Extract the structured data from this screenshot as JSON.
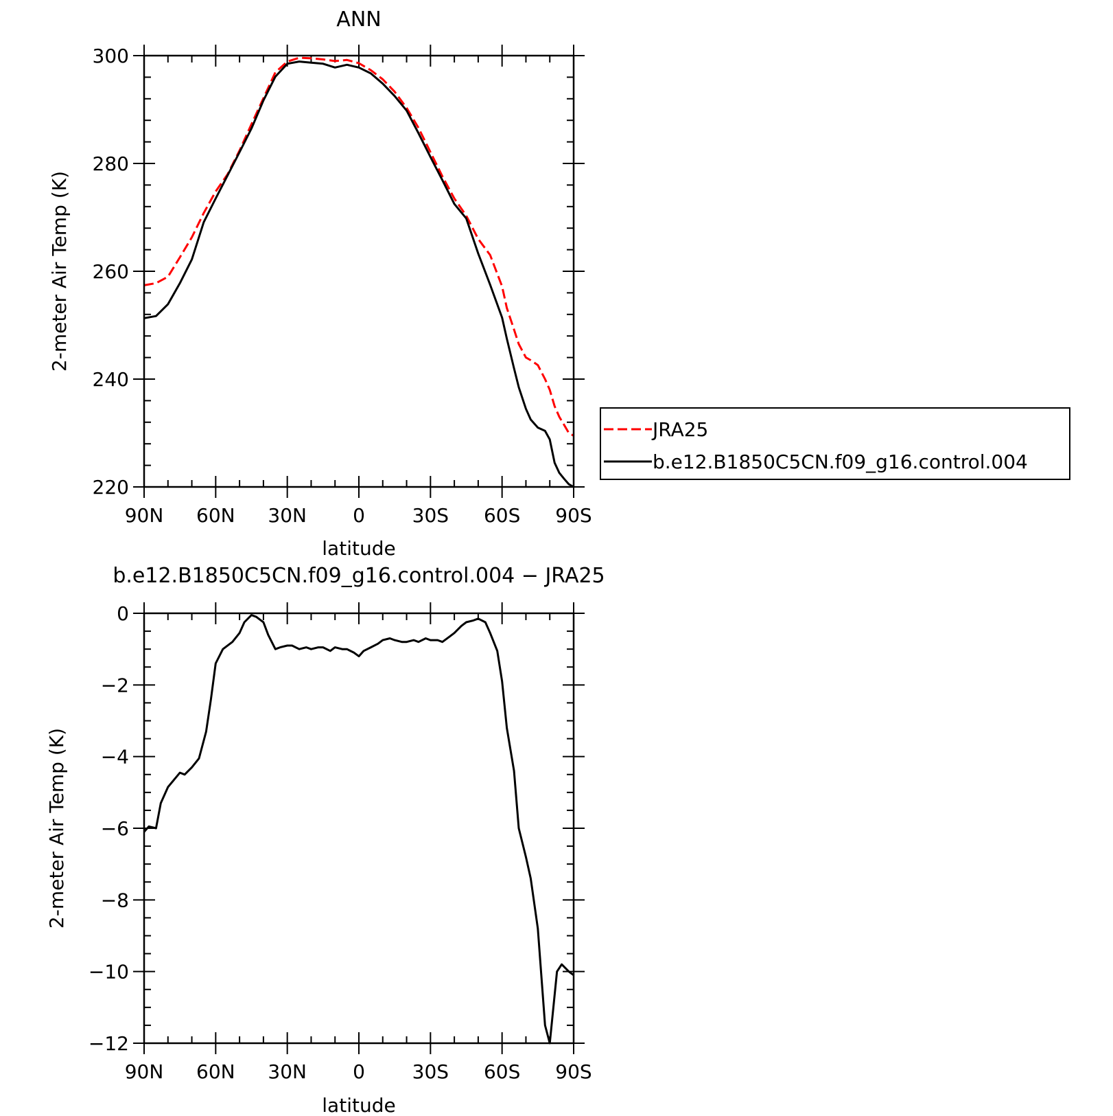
{
  "chart_data": [
    {
      "type": "line",
      "title": "ANN",
      "xlabel": "latitude",
      "ylabel": "2-meter Air Temp (K)",
      "xlim": [
        90,
        -90
      ],
      "ylim": [
        220,
        300
      ],
      "x_ticks": [
        90,
        60,
        30,
        0,
        -30,
        -60,
        -90
      ],
      "x_tick_labels": [
        "90N",
        "60N",
        "30N",
        "0",
        "30S",
        "60S",
        "90S"
      ],
      "y_ticks": [
        220,
        240,
        260,
        280,
        300
      ],
      "y_tick_labels": [
        "220",
        "240",
        "260",
        "280",
        "300"
      ],
      "grid": false,
      "legend_position": "right",
      "series": [
        {
          "name": "JRA25",
          "color": "#ff0000",
          "dash": "dashed",
          "x": [
            90,
            85,
            80,
            75,
            70,
            65,
            60,
            55,
            50,
            45,
            40,
            35,
            30,
            25,
            20,
            15,
            10,
            5,
            0,
            -5,
            -10,
            -15,
            -20,
            -25,
            -30,
            -35,
            -40,
            -45,
            -50,
            -55,
            -60,
            -62,
            -65,
            -67,
            -70,
            -72,
            -75,
            -78,
            -80,
            -82,
            -84,
            -86,
            -88,
            -90
          ],
          "values": [
            257.4,
            257.8,
            259.0,
            262.6,
            266.3,
            270.8,
            274.8,
            278.0,
            282.4,
            287.3,
            292.1,
            296.9,
            298.9,
            299.6,
            299.5,
            299.3,
            299.0,
            299.2,
            298.6,
            297.3,
            295.6,
            293.3,
            290.3,
            286.6,
            282.1,
            277.6,
            273.5,
            270.3,
            266.0,
            263.0,
            257.2,
            253.2,
            249.2,
            246.5,
            244.0,
            243.5,
            242.6,
            240.0,
            238.0,
            235.0,
            233.0,
            231.5,
            230.0,
            229.5
          ]
        },
        {
          "name": "b.e12.B1850C5CN.f09_g16.control.004",
          "color": "#000000",
          "dash": "solid",
          "x": [
            90,
            85,
            80,
            75,
            70,
            65,
            60,
            55,
            50,
            45,
            40,
            35,
            30,
            25,
            20,
            15,
            10,
            5,
            0,
            -5,
            -10,
            -15,
            -20,
            -25,
            -30,
            -35,
            -40,
            -45,
            -50,
            -55,
            -60,
            -62,
            -65,
            -67,
            -70,
            -72,
            -75,
            -78,
            -80,
            -82,
            -84,
            -86,
            -88,
            -90
          ],
          "values": [
            251.3,
            251.7,
            253.9,
            257.8,
            262.2,
            269.1,
            273.5,
            277.8,
            282.1,
            286.5,
            291.7,
            296.1,
            298.5,
            298.9,
            298.7,
            298.5,
            297.8,
            298.3,
            297.8,
            296.7,
            294.8,
            292.5,
            289.8,
            285.6,
            281.2,
            276.9,
            272.5,
            269.8,
            263.3,
            257.5,
            251.4,
            247.5,
            242.0,
            238.5,
            234.5,
            232.5,
            231.0,
            230.4,
            228.8,
            224.5,
            222.6,
            221.5,
            220.5,
            220.0
          ]
        }
      ]
    },
    {
      "type": "line",
      "title": "b.e12.B1850C5CN.f09_g16.control.004 − JRA25",
      "xlabel": "latitude",
      "ylabel": "2-meter Air Temp (K)",
      "xlim": [
        90,
        -90
      ],
      "ylim": [
        -12,
        0
      ],
      "x_ticks": [
        90,
        60,
        30,
        0,
        -30,
        -60,
        -90
      ],
      "x_tick_labels": [
        "90N",
        "60N",
        "30N",
        "0",
        "30S",
        "60S",
        "90S"
      ],
      "y_ticks": [
        0,
        -2,
        -4,
        -6,
        -8,
        -10,
        -12
      ],
      "y_tick_labels": [
        "0",
        "−2",
        "−4",
        "−6",
        "−8",
        "−10",
        "−12"
      ],
      "grid": false,
      "series": [
        {
          "color": "#000000",
          "dash": "solid",
          "x": [
            90,
            88,
            85,
            83,
            80,
            75,
            73,
            70,
            67,
            64,
            62,
            60,
            57,
            53,
            50,
            48,
            45,
            43,
            40,
            38,
            35,
            33,
            30,
            28,
            25,
            22,
            20,
            17,
            15,
            12,
            10,
            7,
            5,
            2,
            0,
            -2,
            -5,
            -8,
            -10,
            -13,
            -15,
            -18,
            -20,
            -23,
            -25,
            -28,
            -30,
            -33,
            -35,
            -38,
            -40,
            -43,
            -45,
            -48,
            -50,
            -53,
            -55,
            -58,
            -60,
            -62,
            -65,
            -67,
            -70,
            -72,
            -75,
            -78,
            -80,
            -83,
            -85,
            -88,
            -90
          ],
          "values": [
            -6.1,
            -5.95,
            -6.0,
            -5.3,
            -4.85,
            -4.45,
            -4.5,
            -4.3,
            -4.05,
            -3.3,
            -2.4,
            -1.4,
            -1.0,
            -0.8,
            -0.55,
            -0.25,
            -0.05,
            -0.1,
            -0.25,
            -0.6,
            -1.0,
            -0.95,
            -0.9,
            -0.9,
            -1.0,
            -0.95,
            -1.0,
            -0.95,
            -0.95,
            -1.05,
            -0.95,
            -1.0,
            -1.0,
            -1.1,
            -1.2,
            -1.05,
            -0.95,
            -0.85,
            -0.75,
            -0.7,
            -0.75,
            -0.8,
            -0.8,
            -0.75,
            -0.8,
            -0.7,
            -0.75,
            -0.75,
            -0.8,
            -0.65,
            -0.55,
            -0.35,
            -0.25,
            -0.2,
            -0.15,
            -0.25,
            -0.55,
            -1.05,
            -1.9,
            -3.2,
            -4.4,
            -6.0,
            -6.8,
            -7.4,
            -8.8,
            -11.5,
            -12.0,
            -10.0,
            -9.8,
            -10.0,
            -10.1
          ]
        }
      ]
    }
  ]
}
